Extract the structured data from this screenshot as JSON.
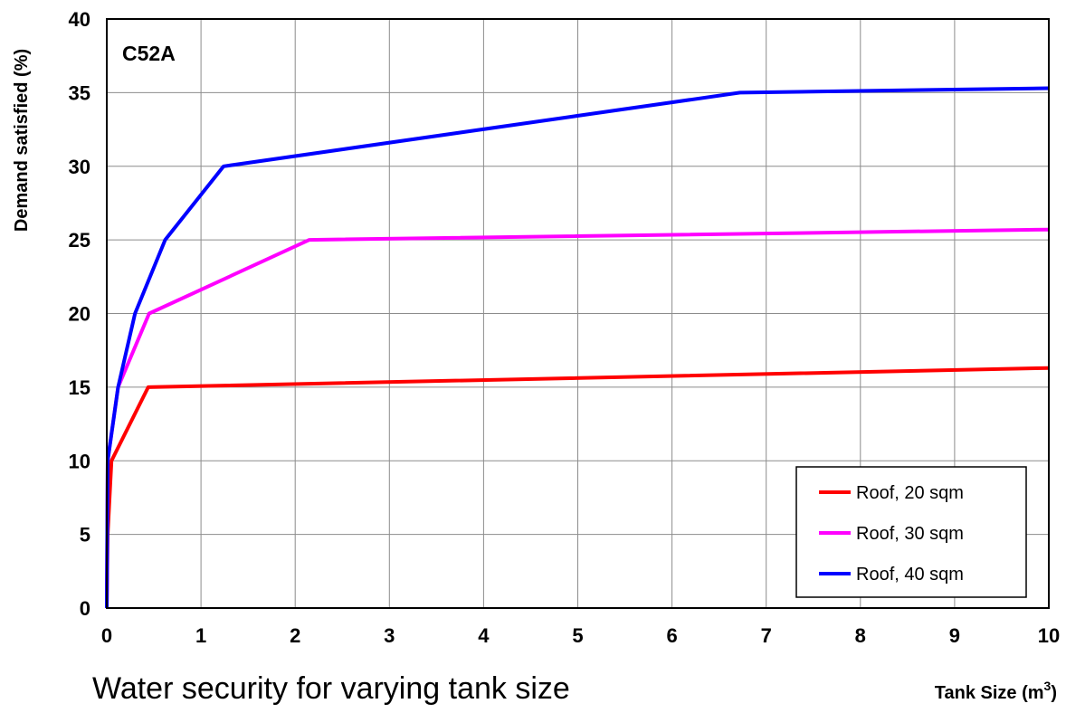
{
  "chart_data": {
    "type": "line",
    "panel_label": "C52A",
    "xlabel": "Tank Size (m",
    "xlabel_sup": "3",
    "xlabel_end": ")",
    "ylabel": "Demand satisfied (%)",
    "xlim": [
      0,
      10
    ],
    "ylim": [
      0,
      40
    ],
    "x_ticks": [
      0,
      1,
      2,
      3,
      4,
      5,
      6,
      7,
      8,
      9,
      10
    ],
    "y_ticks": [
      0,
      5,
      10,
      15,
      20,
      25,
      30,
      35,
      40
    ],
    "grid": true,
    "legend_position": "bottom-right",
    "series": [
      {
        "name": "Roof, 20 sqm",
        "color": "#ff0000",
        "x": [
          0,
          0.01,
          0.05,
          0.44,
          10
        ],
        "y": [
          0,
          5,
          10,
          15,
          16.3
        ]
      },
      {
        "name": "Roof, 30 sqm",
        "color": "#ff00ff",
        "x": [
          0,
          0.01,
          0.12,
          0.45,
          2.15,
          10
        ],
        "y": [
          0,
          10,
          15,
          20,
          25,
          25.7
        ]
      },
      {
        "name": "Roof, 40 sqm",
        "color": "#0000ff",
        "x": [
          0,
          0.01,
          0.12,
          0.3,
          0.62,
          1.24,
          6.72,
          10
        ],
        "y": [
          0,
          10,
          15,
          20,
          25,
          30,
          35,
          35.3
        ]
      }
    ]
  },
  "caption": "Water security for varying tank size"
}
